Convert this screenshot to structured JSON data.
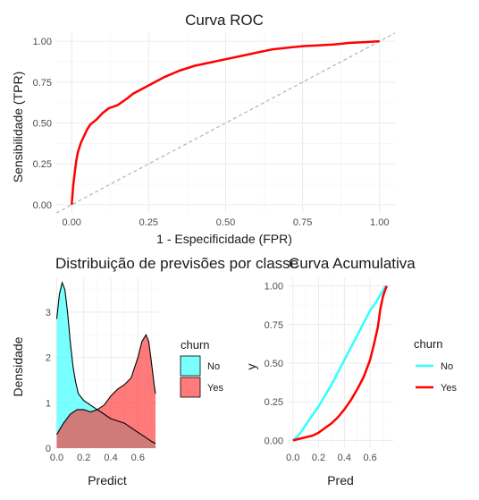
{
  "chart_data": [
    {
      "type": "line",
      "title": "Curva ROC",
      "xlabel": "1 - Especificidade (FPR)",
      "ylabel": "Sensibilidade (TPR)",
      "xlim": [
        -0.05,
        1.05
      ],
      "ylim": [
        -0.05,
        1.05
      ],
      "xticks": [
        "0.00",
        "0.25",
        "0.50",
        "0.75",
        "1.00"
      ],
      "yticks": [
        "0.00",
        "0.25",
        "0.50",
        "0.75",
        "1.00"
      ],
      "grid": true,
      "series": [
        {
          "color": "#ff0000",
          "x": [
            0,
            0.005,
            0.01,
            0.015,
            0.02,
            0.03,
            0.04,
            0.05,
            0.06,
            0.08,
            0.1,
            0.12,
            0.15,
            0.18,
            0.2,
            0.22,
            0.25,
            0.28,
            0.3,
            0.35,
            0.4,
            0.45,
            0.5,
            0.55,
            0.6,
            0.65,
            0.7,
            0.75,
            0.8,
            0.85,
            0.9,
            0.95,
            1.0
          ],
          "y": [
            0,
            0.12,
            0.2,
            0.27,
            0.32,
            0.38,
            0.42,
            0.46,
            0.49,
            0.52,
            0.56,
            0.59,
            0.61,
            0.65,
            0.68,
            0.7,
            0.73,
            0.76,
            0.78,
            0.82,
            0.85,
            0.87,
            0.89,
            0.91,
            0.93,
            0.95,
            0.96,
            0.97,
            0.975,
            0.98,
            0.99,
            0.995,
            1.0
          ]
        },
        {
          "color": "#b3b3b3",
          "dashed": true,
          "x": [
            -0.05,
            1.05
          ],
          "y": [
            -0.05,
            1.05
          ]
        }
      ]
    },
    {
      "type": "area",
      "title": "Distribuição de previsões por classe",
      "xlabel": "Predict",
      "ylabel": "Densidade",
      "xlim": [
        -0.01,
        0.75
      ],
      "ylim": [
        0,
        3.75
      ],
      "xticks": [
        "0.0",
        "0.2",
        "0.4",
        "0.6"
      ],
      "yticks": [
        "0",
        "1",
        "2",
        "3"
      ],
      "legend_title": "churn",
      "legend_position": "right",
      "grid": true,
      "series": [
        {
          "name": "No",
          "color": "#33ffff",
          "x": [
            0.0,
            0.02,
            0.04,
            0.06,
            0.08,
            0.1,
            0.12,
            0.14,
            0.16,
            0.2,
            0.25,
            0.3,
            0.35,
            0.4,
            0.45,
            0.5,
            0.55,
            0.6,
            0.65,
            0.7,
            0.73
          ],
          "y": [
            2.85,
            3.4,
            3.65,
            3.5,
            3.0,
            2.35,
            1.8,
            1.45,
            1.2,
            1.05,
            0.95,
            0.85,
            0.75,
            0.65,
            0.6,
            0.55,
            0.45,
            0.35,
            0.25,
            0.15,
            0.1
          ]
        },
        {
          "name": "Yes",
          "color": "#ff3333",
          "x": [
            0.0,
            0.02,
            0.05,
            0.1,
            0.15,
            0.2,
            0.25,
            0.3,
            0.35,
            0.4,
            0.45,
            0.5,
            0.55,
            0.6,
            0.63,
            0.66,
            0.68,
            0.7,
            0.72,
            0.73
          ],
          "y": [
            0.3,
            0.4,
            0.55,
            0.75,
            0.85,
            0.85,
            0.8,
            0.85,
            0.95,
            1.15,
            1.3,
            1.4,
            1.55,
            2.0,
            2.35,
            2.5,
            2.35,
            1.9,
            1.4,
            1.2
          ]
        }
      ]
    },
    {
      "type": "line",
      "title": "Curva Acumulativa",
      "xlabel": "Pred",
      "ylabel": "y",
      "xlim": [
        -0.04,
        0.78
      ],
      "ylim": [
        -0.05,
        1.05
      ],
      "xticks": [
        "0.0",
        "0.2",
        "0.4",
        "0.6"
      ],
      "yticks": [
        "0.00",
        "0.25",
        "0.50",
        "0.75",
        "1.00"
      ],
      "legend_title": "churn",
      "legend_position": "right",
      "grid": true,
      "series": [
        {
          "name": "No",
          "color": "#33ffff",
          "x": [
            0.0,
            0.03,
            0.06,
            0.1,
            0.15,
            0.2,
            0.25,
            0.3,
            0.35,
            0.4,
            0.45,
            0.5,
            0.55,
            0.6,
            0.65,
            0.7,
            0.72
          ],
          "y": [
            0.0,
            0.02,
            0.05,
            0.1,
            0.16,
            0.22,
            0.29,
            0.36,
            0.44,
            0.52,
            0.6,
            0.68,
            0.76,
            0.84,
            0.9,
            0.97,
            1.0
          ]
        },
        {
          "name": "Yes",
          "color": "#ff0000",
          "x": [
            0.0,
            0.05,
            0.1,
            0.15,
            0.2,
            0.25,
            0.3,
            0.35,
            0.4,
            0.45,
            0.5,
            0.55,
            0.6,
            0.63,
            0.66,
            0.68,
            0.7,
            0.72,
            0.73
          ],
          "y": [
            0.0,
            0.01,
            0.02,
            0.03,
            0.05,
            0.08,
            0.11,
            0.15,
            0.2,
            0.26,
            0.33,
            0.41,
            0.52,
            0.62,
            0.73,
            0.85,
            0.93,
            0.98,
            1.0
          ]
        }
      ]
    }
  ]
}
